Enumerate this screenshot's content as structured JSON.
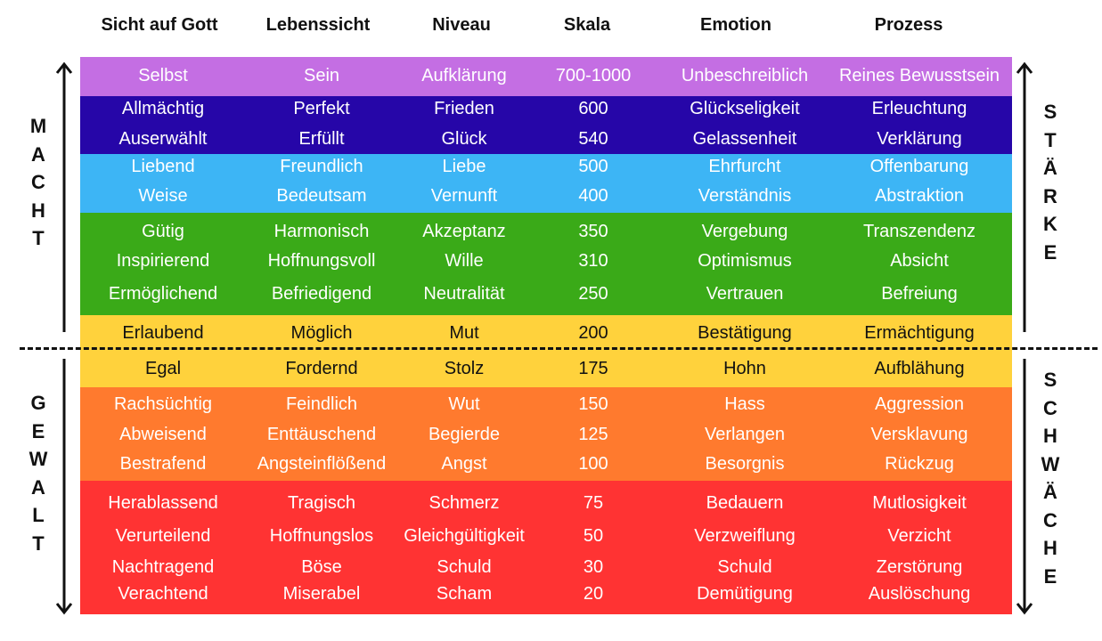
{
  "headers": [
    "Sicht auf Gott",
    "Lebenssicht",
    "Niveau",
    "Skala",
    "Emotion",
    "Prozess"
  ],
  "side": {
    "left_top": [
      "M",
      "A",
      "C",
      "H",
      "T"
    ],
    "left_bottom": [
      "G",
      "E",
      "W",
      "A",
      "L",
      "T"
    ],
    "right_top": [
      "S",
      "T",
      "Ä",
      "R",
      "K",
      "E"
    ],
    "right_bottom": [
      "S",
      "C",
      "H",
      "W",
      "Ä",
      "C",
      "H",
      "E"
    ]
  },
  "colors": {
    "purple": "#C46EE3",
    "navy": "#2606A8",
    "sky": "#3DB5F5",
    "green": "#3AAA18",
    "yellow": "#FFD23C",
    "orange": "#FF7A2E",
    "red": "#FF3333"
  },
  "rows": [
    [
      "Selbst",
      "Sein",
      "Aufklärung",
      "700-1000",
      "Unbeschreiblich",
      "Reines Bewusstsein"
    ],
    [
      "Allmächtig",
      "Perfekt",
      "Frieden",
      "600",
      "Glückseligkeit",
      "Erleuchtung"
    ],
    [
      "Auserwählt",
      "Erfüllt",
      "Glück",
      "540",
      "Gelassenheit",
      "Verklärung"
    ],
    [
      "Liebend",
      "Freundlich",
      "Liebe",
      "500",
      "Ehrfurcht",
      "Offenbarung"
    ],
    [
      "Weise",
      "Bedeutsam",
      "Vernunft",
      "400",
      "Verständnis",
      "Abstraktion"
    ],
    [
      "Gütig",
      "Harmonisch",
      "Akzeptanz",
      "350",
      "Vergebung",
      "Transzendenz"
    ],
    [
      "Inspirierend",
      "Hoffnungsvoll",
      "Wille",
      "310",
      "Optimismus",
      "Absicht"
    ],
    [
      "Ermöglichend",
      "Befriedigend",
      "Neutralität",
      "250",
      "Vertrauen",
      "Befreiung"
    ],
    [
      "Erlaubend",
      "Möglich",
      "Mut",
      "200",
      "Bestätigung",
      "Ermächtigung"
    ],
    [
      "Egal",
      "Fordernd",
      "Stolz",
      "175",
      "Hohn",
      "Aufblähung"
    ],
    [
      "Rachsüchtig",
      "Feindlich",
      "Wut",
      "150",
      "Hass",
      "Aggression"
    ],
    [
      "Abweisend",
      "Enttäuschend",
      "Begierde",
      "125",
      "Verlangen",
      "Versklavung"
    ],
    [
      "Bestrafend",
      "Angsteinflößend",
      "Angst",
      "100",
      "Besorgnis",
      "Rückzug"
    ],
    [
      "Herablassend",
      "Tragisch",
      "Schmerz",
      "75",
      "Bedauern",
      "Mutlosigkeit"
    ],
    [
      "Verurteilend",
      "Hoffnungslos",
      "Gleichgültigkeit",
      "50",
      "Verzweiflung",
      "Verzicht"
    ],
    [
      "Nachtragend",
      "Böse",
      "Schuld",
      "30",
      "Schuld",
      "Zerstörung"
    ],
    [
      "Verachtend",
      "Miserabel",
      "Scham",
      "20",
      "Demütigung",
      "Auslöschung"
    ]
  ]
}
